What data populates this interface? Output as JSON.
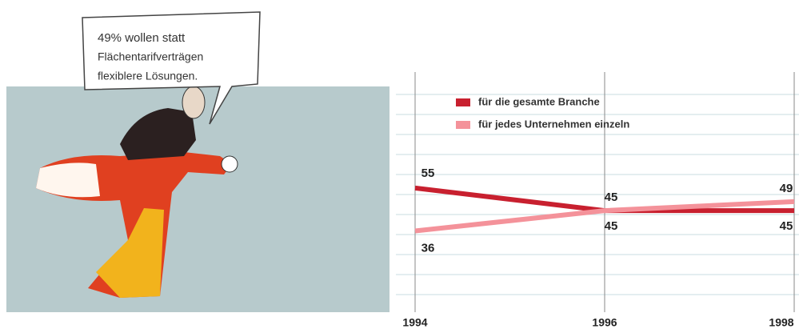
{
  "chart_data": {
    "type": "line",
    "annotations": [
      "49% wollen statt",
      "Flächentarifverträgen",
      "flexiblere Lösungen."
    ],
    "x": [
      1994,
      1996,
      1998
    ],
    "xlim": [
      1994,
      1998
    ],
    "ylim": [
      0,
      100
    ],
    "series": [
      {
        "name": "für die gesamte Branche",
        "color": "#c8202f",
        "values": [
          55,
          45,
          45
        ]
      },
      {
        "name": "für jedes Unternehmen einzeln",
        "color": "#f4929a",
        "values": [
          36,
          45,
          49
        ]
      }
    ]
  }
}
